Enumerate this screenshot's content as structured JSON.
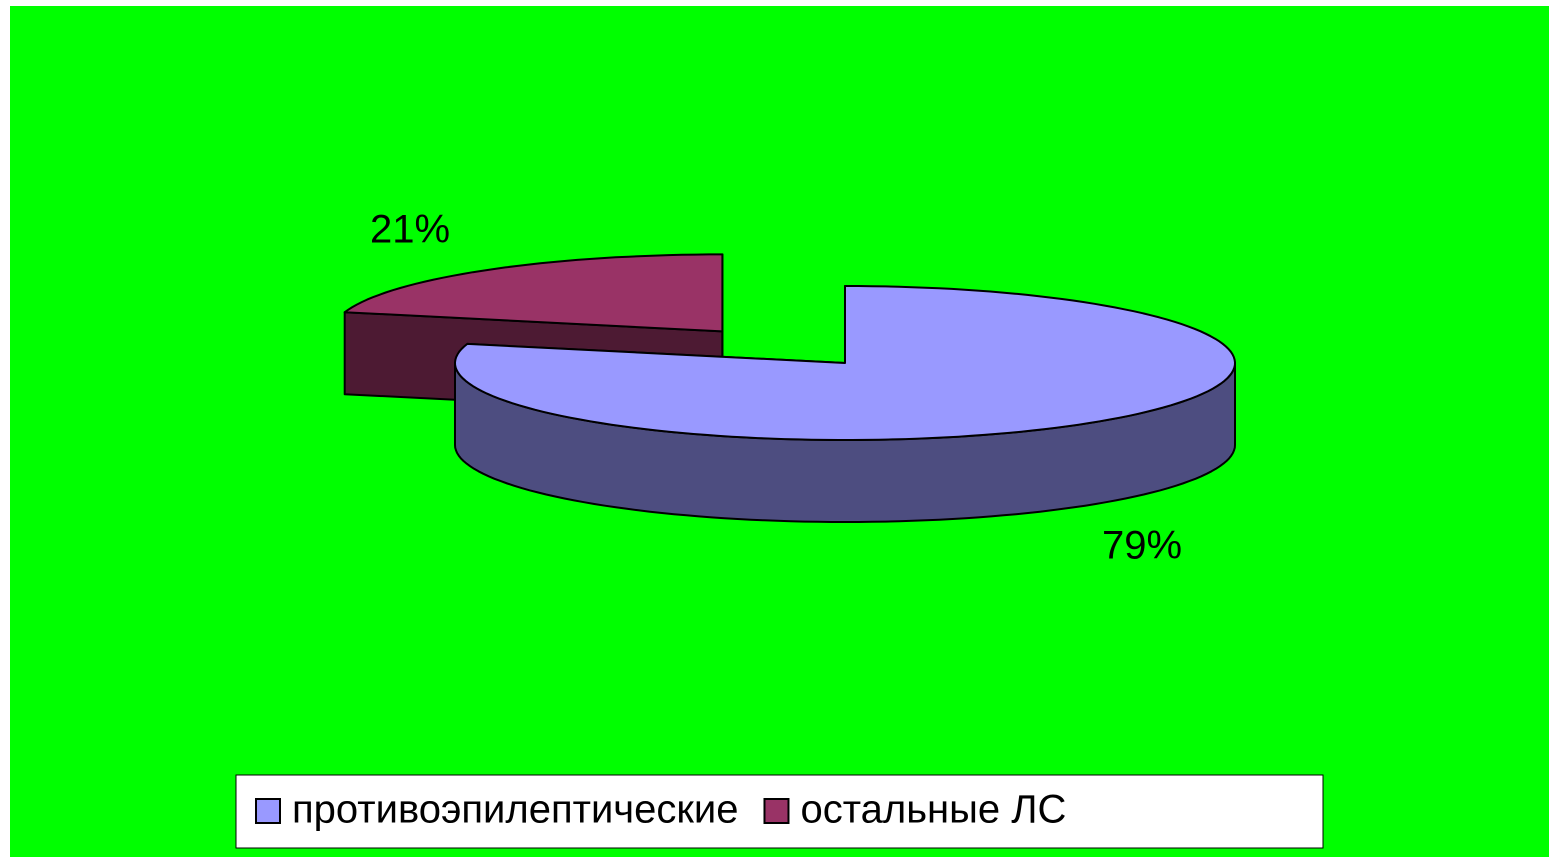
{
  "chart_data": {
    "type": "pie3d",
    "categories": [
      "противоэпилептические",
      "остальные ЛС"
    ],
    "values": [
      79,
      21
    ],
    "value_labels": [
      "79%",
      "21%"
    ],
    "colors": [
      "#9999ff",
      "#993366"
    ],
    "legend": "bottom"
  }
}
